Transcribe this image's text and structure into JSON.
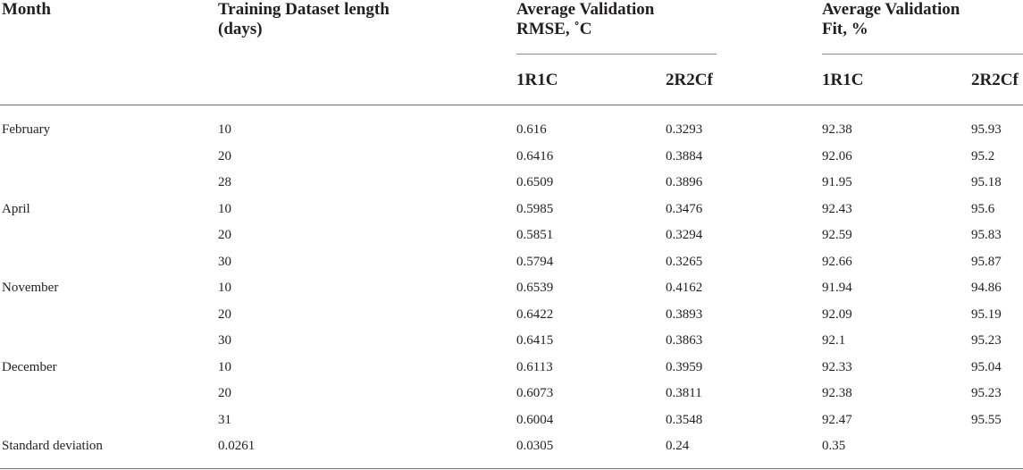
{
  "header": {
    "month": "Month",
    "training_line1": "Training Dataset length",
    "training_line2": "(days)",
    "rmse_line1": "Average Validation",
    "rmse_line2": "RMSE, ˚C",
    "fit_line1": "Average Validation",
    "fit_line2": "Fit, %",
    "sub_1r1c_rmse": "1R1C",
    "sub_2r2cf_rmse": "2R2Cf",
    "sub_1r1c_fit": "1R1C",
    "sub_2r2cf_fit": "2R2Cf"
  },
  "rows": [
    {
      "month": "February",
      "days": "10",
      "rmse_1r1c": "0.616",
      "rmse_2r2cf": "0.3293",
      "fit_1r1c": "92.38",
      "fit_2r2cf": "95.93"
    },
    {
      "month": "",
      "days": "20",
      "rmse_1r1c": "0.6416",
      "rmse_2r2cf": "0.3884",
      "fit_1r1c": "92.06",
      "fit_2r2cf": "95.2"
    },
    {
      "month": "",
      "days": "28",
      "rmse_1r1c": "0.6509",
      "rmse_2r2cf": "0.3896",
      "fit_1r1c": "91.95",
      "fit_2r2cf": "95.18"
    },
    {
      "month": "April",
      "days": "10",
      "rmse_1r1c": "0.5985",
      "rmse_2r2cf": "0.3476",
      "fit_1r1c": "92.43",
      "fit_2r2cf": "95.6"
    },
    {
      "month": "",
      "days": "20",
      "rmse_1r1c": "0.5851",
      "rmse_2r2cf": "0.3294",
      "fit_1r1c": "92.59",
      "fit_2r2cf": "95.83"
    },
    {
      "month": "",
      "days": "30",
      "rmse_1r1c": "0.5794",
      "rmse_2r2cf": "0.3265",
      "fit_1r1c": "92.66",
      "fit_2r2cf": "95.87"
    },
    {
      "month": "November",
      "days": "10",
      "rmse_1r1c": "0.6539",
      "rmse_2r2cf": "0.4162",
      "fit_1r1c": "91.94",
      "fit_2r2cf": "94.86"
    },
    {
      "month": "",
      "days": "20",
      "rmse_1r1c": "0.6422",
      "rmse_2r2cf": "0.3893",
      "fit_1r1c": "92.09",
      "fit_2r2cf": "95.19"
    },
    {
      "month": "",
      "days": "30",
      "rmse_1r1c": "0.6415",
      "rmse_2r2cf": "0.3863",
      "fit_1r1c": "92.1",
      "fit_2r2cf": "95.23"
    },
    {
      "month": "December",
      "days": "10",
      "rmse_1r1c": "0.6113",
      "rmse_2r2cf": "0.3959",
      "fit_1r1c": "92.33",
      "fit_2r2cf": "95.04"
    },
    {
      "month": "",
      "days": "20",
      "rmse_1r1c": "0.6073",
      "rmse_2r2cf": "0.3811",
      "fit_1r1c": "92.38",
      "fit_2r2cf": "95.23"
    },
    {
      "month": "",
      "days": "31",
      "rmse_1r1c": "0.6004",
      "rmse_2r2cf": "0.3548",
      "fit_1r1c": "92.47",
      "fit_2r2cf": "95.55"
    },
    {
      "month": "Standard deviation",
      "days": "0.0261",
      "rmse_1r1c": "0.0305",
      "rmse_2r2cf": "0.24",
      "fit_1r1c": "0.35",
      "fit_2r2cf": ""
    }
  ]
}
